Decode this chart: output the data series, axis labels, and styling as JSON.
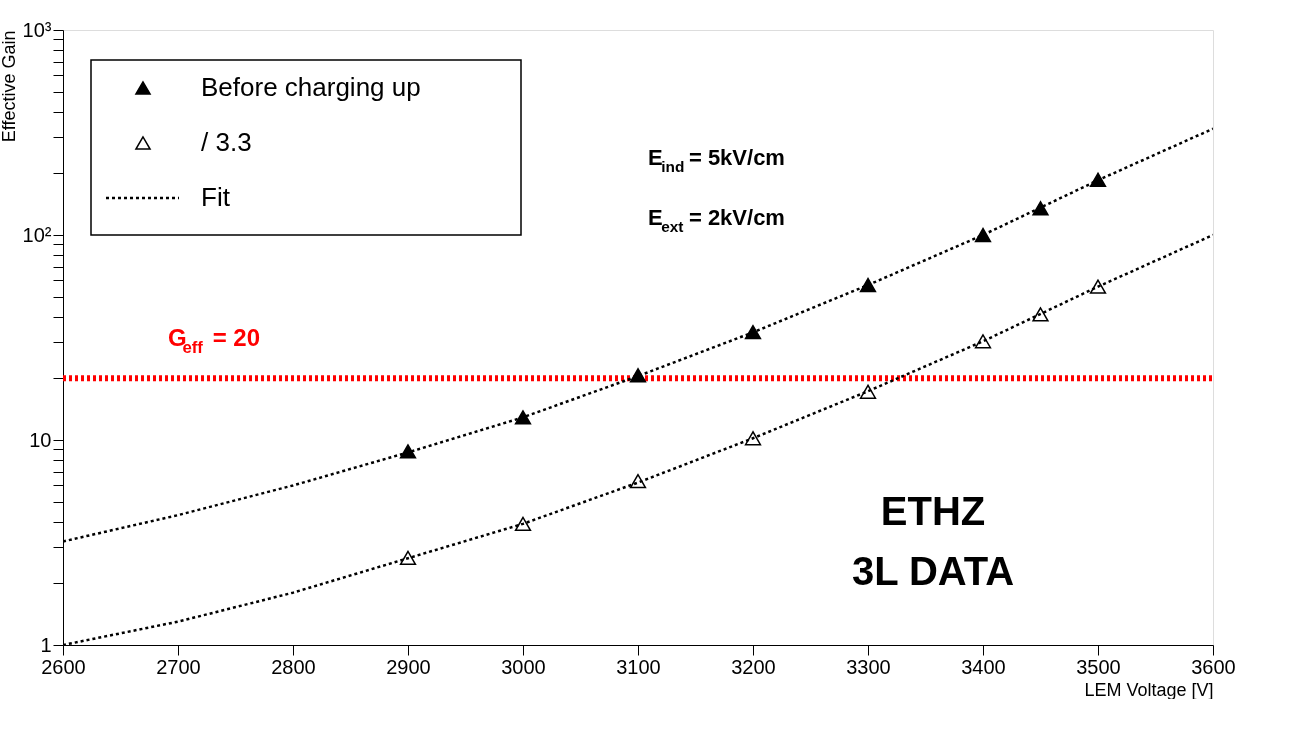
{
  "chart_data": {
    "type": "scatter",
    "xlabel": "LEM Voltage [V]",
    "ylabel": "Effective Gain",
    "xlim": [
      2600,
      3600
    ],
    "xticks": [
      2600,
      2700,
      2800,
      2900,
      3000,
      3100,
      3200,
      3300,
      3400,
      3500,
      3600
    ],
    "ylim": [
      1,
      1000
    ],
    "log": "y",
    "yticks": [
      1,
      {
        "value": 2,
        "label": null
      },
      {
        "value": 3,
        "label": null
      },
      {
        "value": 4,
        "label": null
      },
      {
        "value": 5,
        "label": null
      },
      {
        "value": 6,
        "label": null
      },
      {
        "value": 7,
        "label": null
      },
      {
        "value": 8,
        "label": null
      },
      {
        "value": 9,
        "label": null
      },
      10,
      {
        "value": 20,
        "label": null
      },
      {
        "value": 30,
        "label": null
      },
      {
        "value": 40,
        "label": null
      },
      {
        "value": 50,
        "label": null
      },
      {
        "value": 60,
        "label": null
      },
      {
        "value": 70,
        "label": null
      },
      {
        "value": 80,
        "label": null
      },
      {
        "value": 90,
        "label": null
      },
      {
        "value": 100,
        "label": "10²"
      },
      {
        "value": 200,
        "label": null
      },
      {
        "value": 300,
        "label": null
      },
      {
        "value": 400,
        "label": null
      },
      {
        "value": 500,
        "label": null
      },
      {
        "value": 600,
        "label": null
      },
      {
        "value": 700,
        "label": null
      },
      {
        "value": 800,
        "label": null
      },
      {
        "value": 900,
        "label": null
      },
      {
        "value": 1000,
        "label": "10³"
      }
    ],
    "grid": false,
    "legend": "top left",
    "series": [
      {
        "name": "Before charging up",
        "marker": "triangle",
        "color": "#000000",
        "x": [
          2900,
          3000,
          3100,
          3200,
          3300,
          3400,
          3450,
          3500
        ],
        "values": [
          8.8,
          12.9,
          20.7,
          33.6,
          57,
          100,
          135,
          186
        ]
      },
      {
        "name": "/ 3.3",
        "marker": "triangle",
        "color": "#000000",
        "x": [
          2900,
          3000,
          3100,
          3200,
          3300,
          3400,
          3450,
          3500
        ],
        "values": [
          2.66,
          3.9,
          6.3,
          10.2,
          17.2,
          30.3,
          41,
          56
        ]
      },
      {
        "name": "Fit",
        "type": "line",
        "line_style": "dotted",
        "color": "#000000",
        "x": [
          2600,
          2700,
          2800,
          2900,
          3000,
          3100,
          3200,
          3300,
          3400,
          3500,
          3600
        ],
        "values": [
          3.2,
          4.3,
          6.0,
          8.7,
          12.9,
          20.5,
          33.5,
          57,
          100,
          185,
          330
        ]
      },
      {
        "type": "line",
        "line_style": "dotted",
        "color": "#000000",
        "x": [
          2600,
          2700,
          2800,
          2900,
          3000,
          3100,
          3200,
          3300,
          3400,
          3500,
          3600
        ],
        "values": [
          1.0,
          1.3,
          1.8,
          2.65,
          3.9,
          6.2,
          10.2,
          17.3,
          30.3,
          56,
          100
        ]
      }
    ],
    "ref_lines": [
      {
        "axis": "y",
        "value": 20,
        "label": "G$_{eff}$ = 20",
        "color": "#ff0000",
        "line_style": "dotted"
      }
    ],
    "annotations": [
      "E$_{ind}$ = 5kV/cm",
      "E$_{ext}$ = 2kV/cm",
      "ETHZ",
      "3L DATA"
    ]
  }
}
